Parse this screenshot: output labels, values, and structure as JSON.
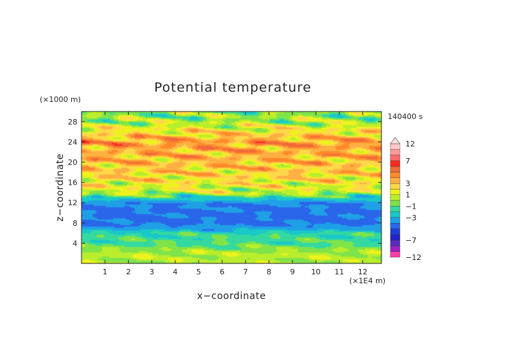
{
  "chart_data": {
    "type": "heatmap",
    "title": "Potential temperature",
    "xlabel": "x−coordinate",
    "ylabel": "z−coordinate",
    "x_unit": "(×1E4 m)",
    "y_unit": "(×1000 m)",
    "time_label": "140400 s",
    "xlim": [
      0,
      12.8
    ],
    "ylim": [
      0,
      30
    ],
    "x_ticks": [
      1,
      2,
      3,
      4,
      5,
      6,
      7,
      8,
      9,
      10,
      11,
      12
    ],
    "y_ticks": [
      4,
      8,
      12,
      16,
      20,
      24,
      28
    ],
    "colorbar": {
      "labels": [
        "12",
        "7",
        "3",
        "1",
        "−1",
        "−3",
        "−7",
        "−12"
      ],
      "label_values": [
        12,
        7,
        3,
        1,
        -1,
        -3,
        -7,
        -12
      ],
      "levels": [
        -12,
        -10,
        -8,
        -7,
        -6,
        -5,
        -4,
        -3,
        -2,
        -1,
        0,
        1,
        2,
        3,
        4,
        5,
        6,
        7,
        8,
        10,
        12
      ],
      "colors": [
        "#ff3fa8",
        "#a020c8",
        "#5a2bc0",
        "#2424c8",
        "#1e3edc",
        "#2a66ea",
        "#1fa0e6",
        "#19c8c8",
        "#34d9a0",
        "#7fe34a",
        "#b9ee2c",
        "#eef21c",
        "#ffd84a",
        "#ffb040",
        "#ff8a2a",
        "#f06a3a",
        "#ff2a1a",
        "#ff6a6a",
        "#ff9a9a",
        "#ffc8c8"
      ]
    },
    "field_profile": {
      "z": [
        0,
        2,
        4,
        6,
        7,
        8,
        10,
        12,
        13,
        14,
        16,
        18,
        20,
        22,
        24,
        26,
        28,
        30
      ],
      "value": [
        0.2,
        0.5,
        -1.2,
        -1.6,
        -3.5,
        -4.2,
        -4.2,
        -4.0,
        -2.2,
        0.6,
        1.8,
        2.6,
        3.0,
        3.4,
        4.0,
        2.2,
        0.2,
        -0.3
      ]
    }
  }
}
